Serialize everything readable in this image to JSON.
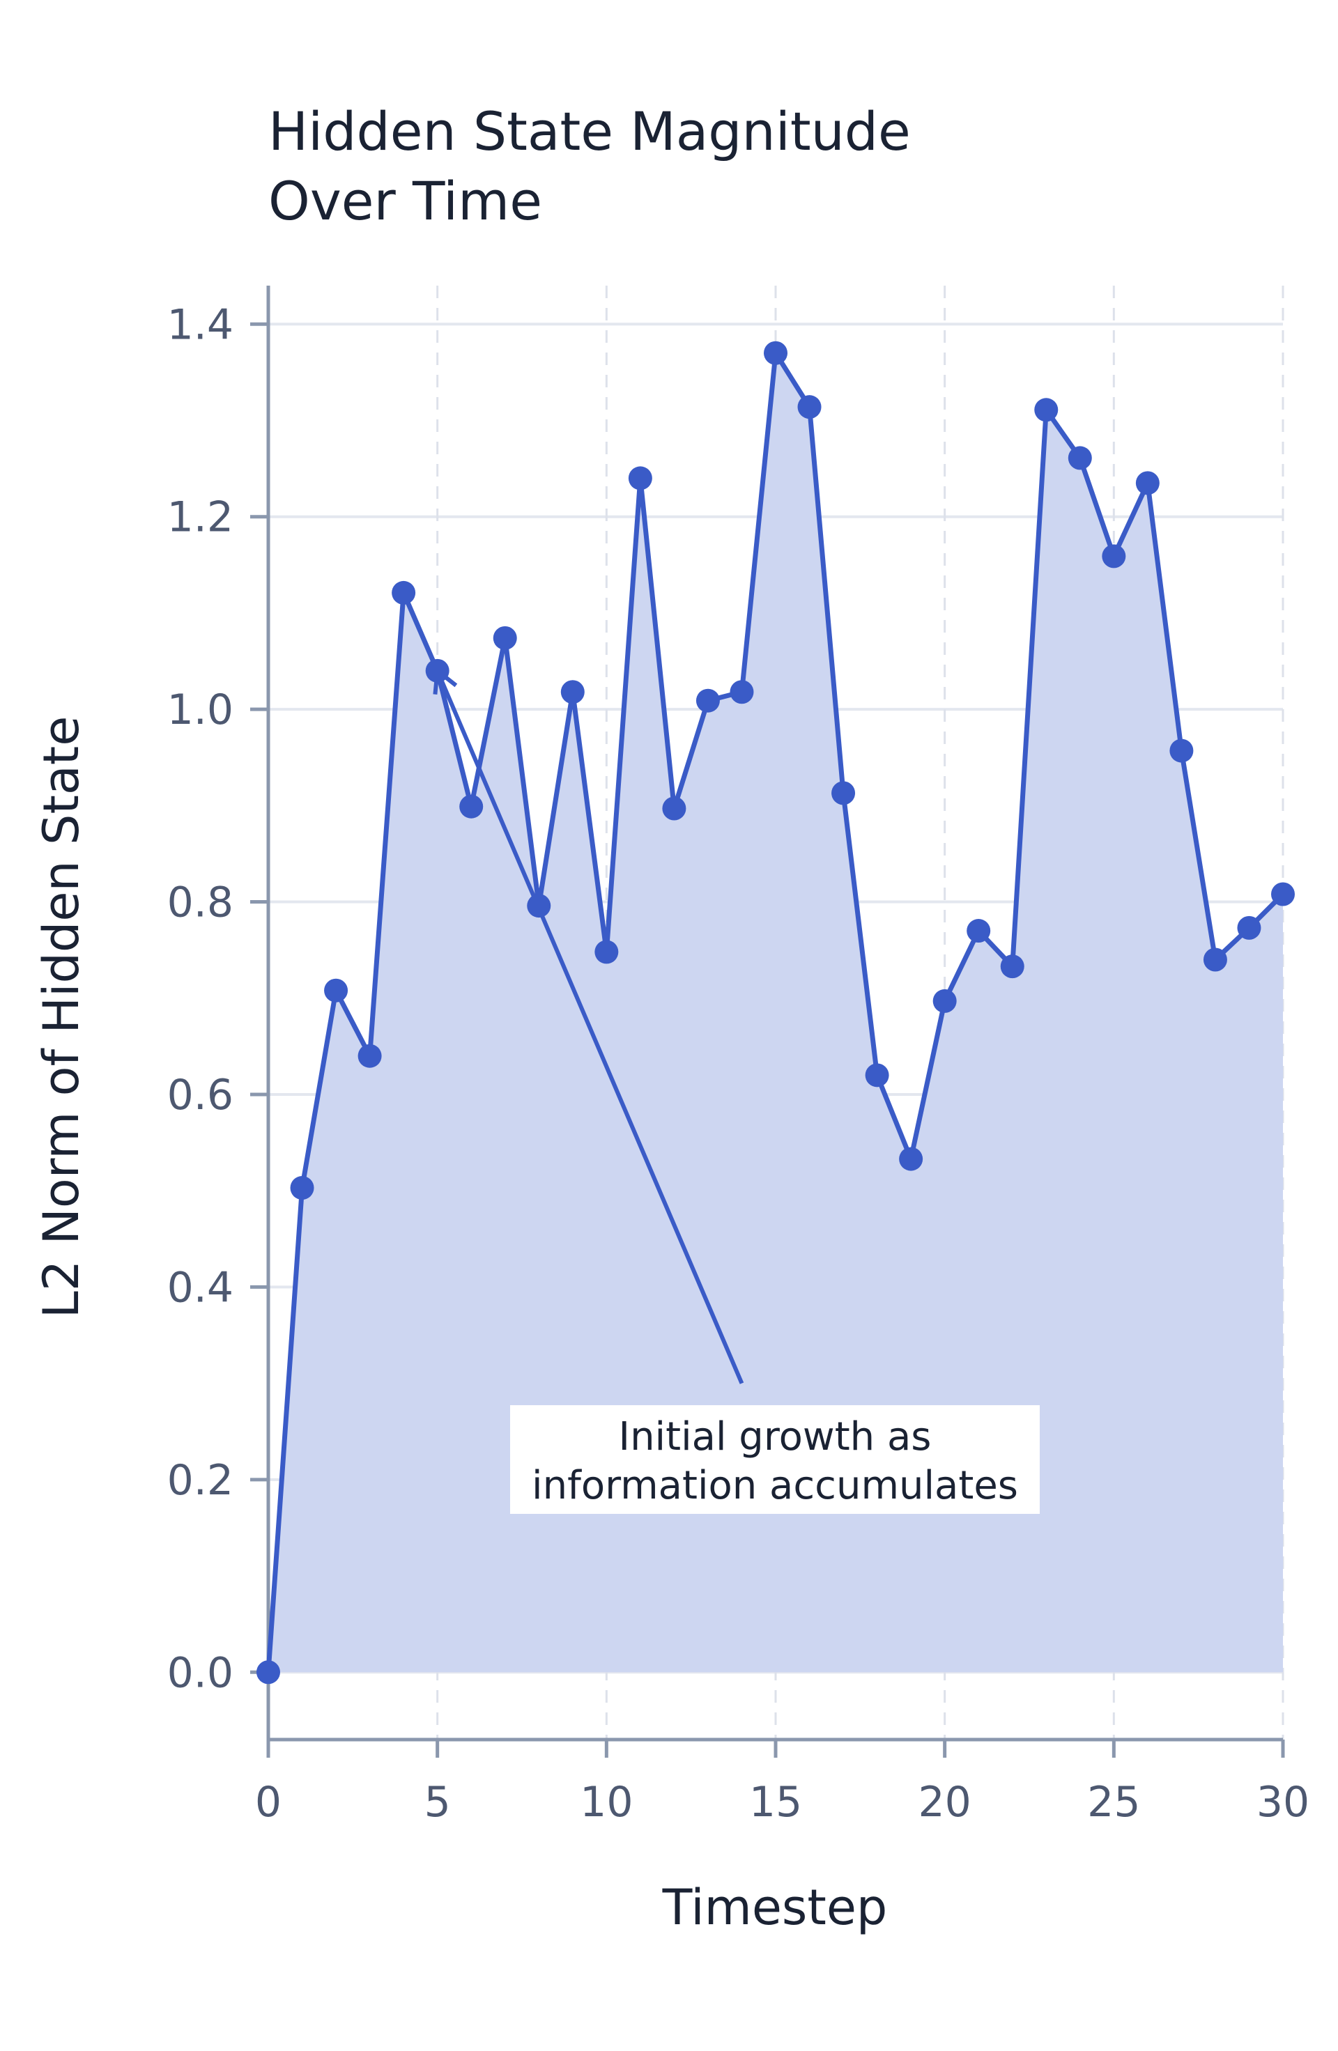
{
  "chart_data": {
    "type": "area",
    "title_lines": [
      "Hidden State Magnitude",
      "Over Time"
    ],
    "xlabel": "Timestep",
    "ylabel": "L2 Norm of Hidden State",
    "xlim": [
      0,
      30
    ],
    "ylim": [
      -0.07,
      1.44
    ],
    "xticks": [
      0,
      5,
      10,
      15,
      20,
      25,
      30
    ],
    "yticks": [
      0.0,
      0.2,
      0.4,
      0.6,
      0.8,
      1.0,
      1.2,
      1.4
    ],
    "ytick_labels": [
      "0.0",
      "0.2",
      "0.4",
      "0.6",
      "0.8",
      "1.0",
      "1.2",
      "1.4"
    ],
    "grid": true,
    "series": [
      {
        "x": [
          0,
          1,
          2,
          3,
          4,
          5,
          6,
          7,
          8,
          9,
          10,
          11,
          12,
          13,
          14,
          15,
          16,
          17,
          18,
          19,
          20,
          21,
          22,
          23,
          24,
          25,
          26,
          27,
          28,
          29,
          30
        ],
        "values": [
          0.0,
          0.503,
          0.708,
          0.64,
          1.121,
          1.04,
          0.899,
          1.074,
          0.796,
          1.018,
          0.748,
          1.24,
          0.897,
          1.009,
          1.018,
          1.37,
          1.314,
          0.913,
          0.62,
          0.533,
          0.697,
          0.77,
          0.733,
          1.311,
          1.261,
          1.159,
          1.235,
          0.957,
          0.74,
          0.773,
          0.808
        ],
        "color": "#3a5bc7",
        "fill_color": "#cdd6f1"
      }
    ],
    "annotations": [
      {
        "text_lines": [
          "Initial growth as",
          "information accumulates"
        ],
        "target": [
          5,
          1.04
        ],
        "text_anchor": [
          14,
          0.3
        ]
      }
    ]
  }
}
